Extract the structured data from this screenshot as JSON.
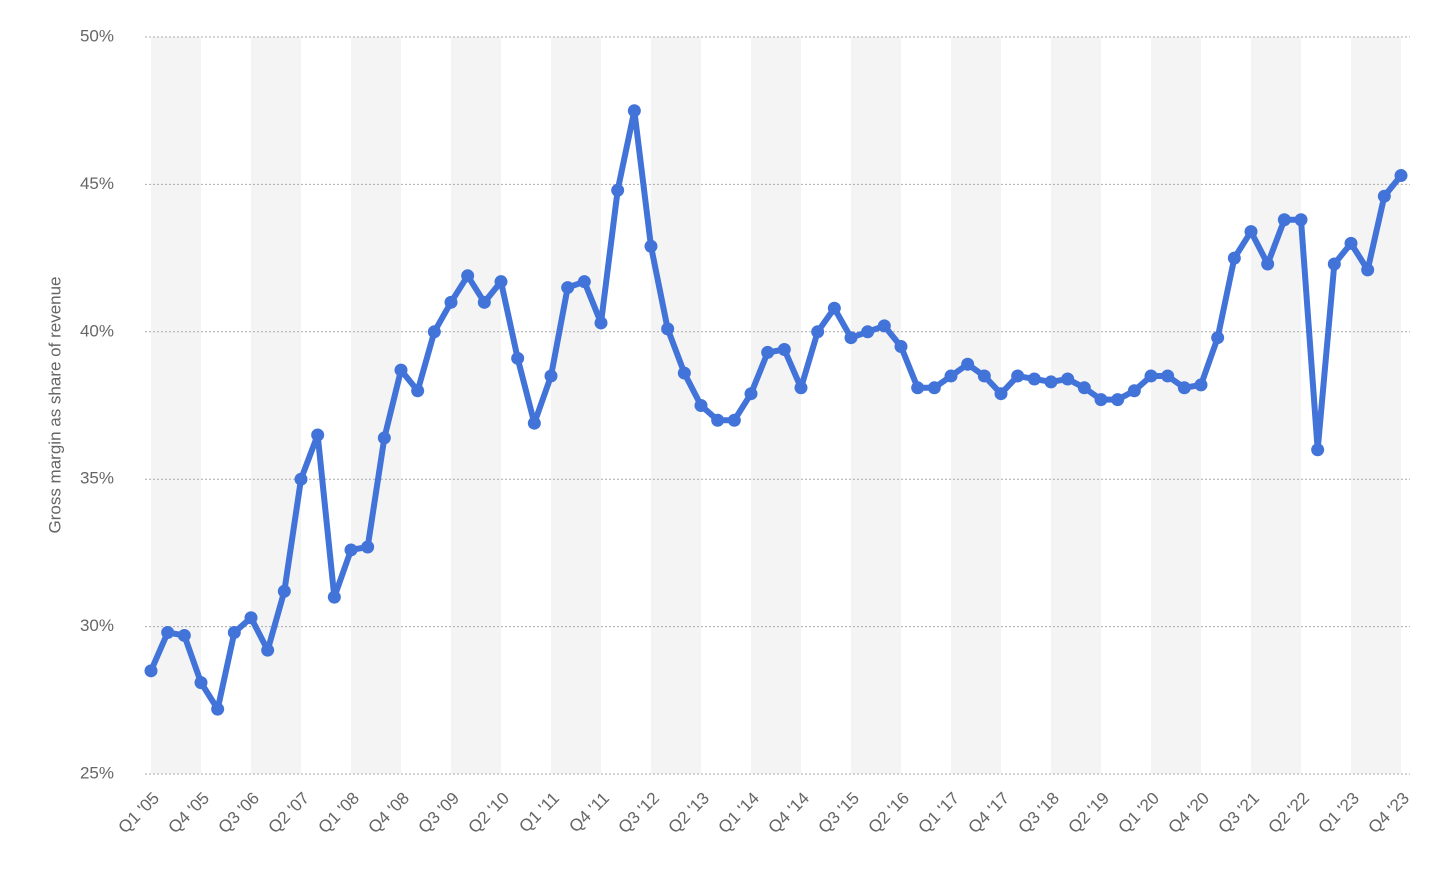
{
  "chart_data": {
    "type": "line",
    "y_label": "Gross margin as share of revenue",
    "categories": [
      "Q1 '05",
      null,
      null,
      "Q4 '05",
      null,
      null,
      "Q3 '06",
      null,
      null,
      "Q2 '07",
      null,
      null,
      "Q1 '08",
      null,
      null,
      "Q4 '08",
      null,
      null,
      "Q3 '09",
      null,
      null,
      "Q2 '10",
      null,
      null,
      "Q1 '11",
      null,
      null,
      "Q4 '11",
      null,
      null,
      "Q3 '12",
      null,
      null,
      "Q2 '13",
      null,
      null,
      "Q1 '14",
      null,
      null,
      "Q4 '14",
      null,
      null,
      "Q3 '15",
      null,
      null,
      "Q2 '16",
      null,
      null,
      "Q1 '17",
      null,
      null,
      "Q4 '17",
      null,
      null,
      "Q3 '18",
      null,
      null,
      "Q2 '19",
      null,
      null,
      "Q1 '20",
      null,
      null,
      "Q4 '20",
      null,
      null,
      "Q3 '21",
      null,
      null,
      "Q2 '22",
      null,
      null,
      "Q1 '23",
      null,
      null,
      "Q4 '23"
    ],
    "values": [
      28.5,
      29.8,
      29.7,
      28.1,
      27.2,
      29.8,
      30.3,
      29.2,
      31.2,
      35.0,
      36.5,
      31.0,
      32.6,
      32.7,
      36.4,
      38.7,
      38.0,
      40.0,
      41.0,
      41.9,
      41.0,
      41.7,
      39.1,
      36.9,
      38.5,
      41.5,
      41.7,
      40.3,
      44.8,
      47.5,
      42.9,
      40.1,
      38.6,
      37.5,
      37.0,
      37.0,
      37.9,
      39.3,
      39.4,
      38.1,
      40.0,
      40.8,
      39.8,
      40.0,
      40.2,
      39.5,
      38.1,
      38.1,
      38.5,
      38.9,
      38.5,
      37.9,
      38.5,
      38.4,
      38.3,
      38.4,
      38.1,
      37.7,
      37.7,
      38.0,
      38.5,
      38.5,
      38.1,
      38.2,
      39.8,
      42.5,
      43.4,
      42.3,
      43.8,
      43.8,
      36.0,
      42.3,
      43.0,
      42.1,
      44.6,
      45.3
    ],
    "color": "#4273d9",
    "ylim": [
      25,
      50
    ],
    "yticks": [
      {
        "value": 25,
        "label": "25%"
      },
      {
        "value": 30,
        "label": "30%"
      },
      {
        "value": 35,
        "label": "35%"
      },
      {
        "value": 40,
        "label": "40%"
      },
      {
        "value": 45,
        "label": "45%"
      },
      {
        "value": 50,
        "label": "50%"
      }
    ],
    "grid": true
  }
}
